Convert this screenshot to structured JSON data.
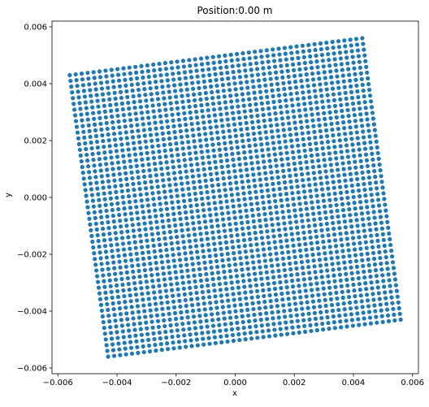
{
  "chart_data": {
    "type": "scatter",
    "title": "Position:0.00 m",
    "xlabel": "x",
    "ylabel": "y",
    "xlim": [
      -0.0062,
      0.0062
    ],
    "ylim": [
      -0.0062,
      0.0062
    ],
    "xticks": [
      -0.006,
      -0.004,
      -0.002,
      0.0,
      0.002,
      0.004,
      0.006
    ],
    "xtick_labels": [
      "−0.006",
      "−0.004",
      "−0.002",
      "0.000",
      "0.002",
      "0.004",
      "0.006"
    ],
    "yticks": [
      -0.006,
      -0.004,
      -0.002,
      0.0,
      0.002,
      0.004,
      0.006
    ],
    "ytick_labels": [
      "−0.006",
      "−0.004",
      "−0.002",
      "0.000",
      "0.002",
      "0.004",
      "0.006"
    ],
    "grid": false,
    "marker_color": "#1f77b4",
    "series": [
      {
        "grid_points": {
          "rows": 50,
          "cols": 50,
          "corners": {
            "top_left": [
              -0.0056,
              0.0043
            ],
            "top_right": [
              0.0043,
              0.0056
            ],
            "bottom_left": [
              -0.0043,
              -0.0056
            ],
            "bottom_right": [
              0.0056,
              -0.0043
            ]
          }
        }
      }
    ]
  }
}
